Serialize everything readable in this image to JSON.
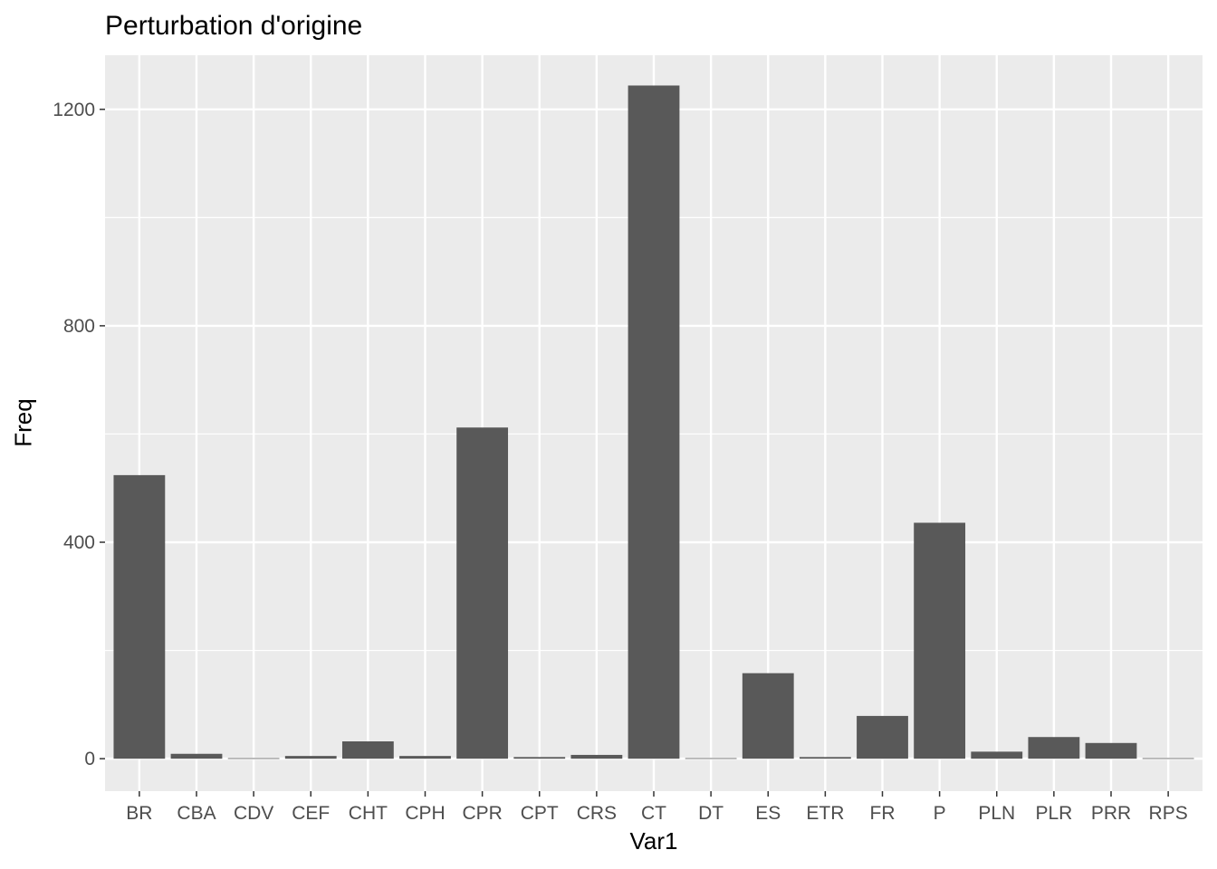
{
  "chart_data": {
    "type": "bar",
    "title": "Perturbation d'origine",
    "xlabel": "Var1",
    "ylabel": "Freq",
    "categories": [
      "BR",
      "CBA",
      "CDV",
      "CEF",
      "CHT",
      "CPH",
      "CPR",
      "CPT",
      "CRS",
      "CT",
      "DT",
      "ES",
      "ETR",
      "FR",
      "P",
      "PLN",
      "PLR",
      "PRR",
      "RPS"
    ],
    "values": [
      524,
      9,
      1,
      5,
      32,
      5,
      612,
      3,
      7,
      1244,
      1,
      158,
      3,
      79,
      436,
      13,
      40,
      29,
      1
    ],
    "ylim": [
      -60,
      1300
    ],
    "yticks": [
      0,
      400,
      800,
      1200
    ],
    "grid": true,
    "colors": {
      "panel": "#ebebeb",
      "grid": "#ffffff",
      "bar": "#595959",
      "tick": "#333333"
    }
  }
}
